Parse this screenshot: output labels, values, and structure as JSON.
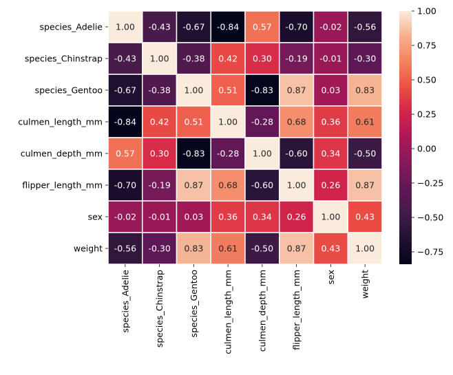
{
  "chart_data": {
    "type": "heatmap",
    "title": "",
    "xlabel": "",
    "ylabel": "",
    "categories": [
      "species_Adelie",
      "species_Chinstrap",
      "species_Gentoo",
      "culmen_length_mm",
      "culmen_depth_mm",
      "flipper_length_mm",
      "sex",
      "weight"
    ],
    "matrix": [
      [
        "1.00",
        "-0.43",
        "-0.67",
        "-0.84",
        "0.57",
        "-0.70",
        "-0.02",
        "-0.56"
      ],
      [
        "-0.43",
        "1.00",
        "-0.38",
        "0.42",
        "0.30",
        "-0.19",
        "-0.01",
        "-0.30"
      ],
      [
        "-0.67",
        "-0.38",
        "1.00",
        "0.51",
        "-0.83",
        "0.87",
        "0.03",
        "0.83"
      ],
      [
        "-0.84",
        "0.42",
        "0.51",
        "1.00",
        "-0.28",
        "0.68",
        "0.36",
        "0.61"
      ],
      [
        "0.57",
        "0.30",
        "-0.83",
        "-0.28",
        "1.00",
        "-0.60",
        "0.34",
        "-0.50"
      ],
      [
        "-0.70",
        "-0.19",
        "0.87",
        "0.68",
        "-0.60",
        "1.00",
        "0.26",
        "0.87"
      ],
      [
        "-0.02",
        "-0.01",
        "0.03",
        "0.36",
        "0.34",
        "0.26",
        "1.00",
        "0.43"
      ],
      [
        "-0.56",
        "-0.30",
        "0.83",
        "0.61",
        "-0.50",
        "0.87",
        "0.43",
        "1.00"
      ]
    ],
    "colorbar": {
      "min": -0.84,
      "max": 1.0,
      "ticks": [
        "1.00",
        "0.75",
        "0.50",
        "0.25",
        "0.00",
        "−0.25",
        "−0.50",
        "−0.75"
      ],
      "tick_values": [
        1.0,
        0.75,
        0.5,
        0.25,
        0.0,
        -0.25,
        -0.5,
        -0.75
      ],
      "colormap": "rocket"
    },
    "grid": false,
    "legend": "colorbar right"
  }
}
